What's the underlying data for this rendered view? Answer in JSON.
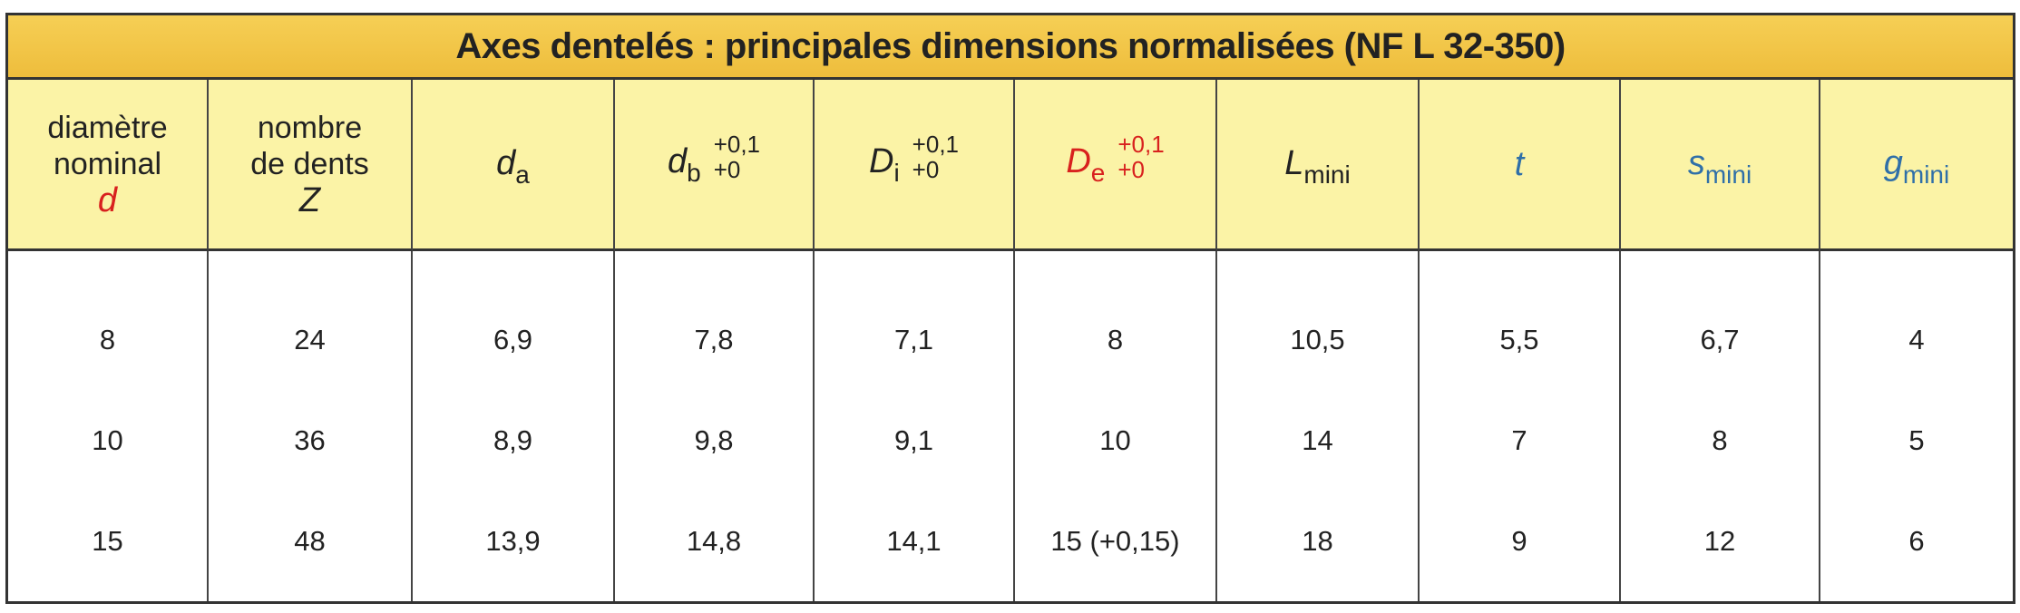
{
  "title": "Axes dentelés : principales dimensions normalisées (NF L 32-350)",
  "table": {
    "header": [
      {
        "lines": [
          "diamètre",
          "nominal"
        ],
        "symbol": "d"
      },
      {
        "lines": [
          "nombre",
          "de dents"
        ],
        "symbol": "Z"
      },
      {
        "symbol": "d",
        "sub": "a"
      },
      {
        "symbol": "d",
        "sub": "b",
        "tol": [
          "+0,1",
          "+0"
        ]
      },
      {
        "symbol": "D",
        "sub": "i",
        "tol": [
          "+0,1",
          "+0"
        ]
      },
      {
        "symbol": "D",
        "sub": "e",
        "tol": [
          "+0,1",
          "+0"
        ]
      },
      {
        "symbol": "L",
        "sub": "mini"
      },
      {
        "symbol": "t"
      },
      {
        "symbol": "s",
        "sub": "mini"
      },
      {
        "symbol": "g",
        "sub": "mini"
      }
    ],
    "rows": [
      [
        "8",
        "24",
        "6,9",
        "7,8",
        "7,1",
        "8",
        "10,5",
        "5,5",
        "6,7",
        "4"
      ],
      [
        "10",
        "36",
        "8,9",
        "9,8",
        "9,1",
        "10",
        "14",
        "7",
        "8",
        "5"
      ],
      [
        "15",
        "48",
        "13,9",
        "14,8",
        "14,1",
        "15 (+0,15)",
        "18",
        "9",
        "12",
        "6"
      ]
    ]
  }
}
